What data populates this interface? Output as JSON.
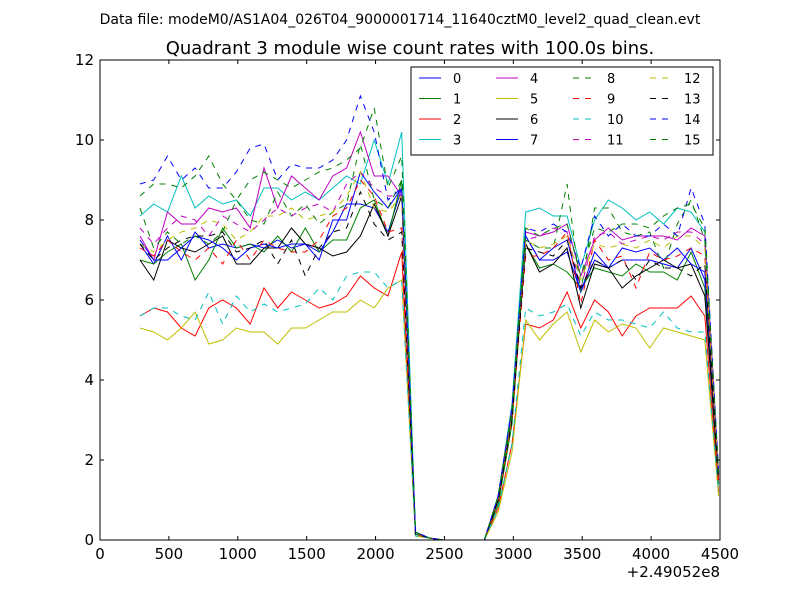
{
  "chart_data": {
    "type": "line",
    "title": "Quadrant 3 module wise count rates with 100.0s bins.",
    "suptitle": "Data file: modeM0/AS1A04_026T04_9000001714_11640cztM0_level2_quad_clean.evt",
    "x_offset_label": "+2.49052e8",
    "xlabel": "",
    "ylabel": "",
    "xlim": [
      0,
      4500
    ],
    "ylim": [
      0,
      12
    ],
    "xticks": [
      0,
      500,
      1000,
      1500,
      2000,
      2500,
      3000,
      3500,
      4000,
      4500
    ],
    "yticks": [
      0,
      2,
      4,
      6,
      8,
      10,
      12
    ],
    "grid": false,
    "legend_position": "top-right",
    "legend_columns": 4,
    "x": [
      290,
      390,
      490,
      590,
      690,
      790,
      890,
      990,
      1090,
      1190,
      1290,
      1390,
      1490,
      1590,
      1690,
      1790,
      1890,
      1990,
      2090,
      2190,
      2290,
      2390,
      2490,
      2590,
      2690,
      2790,
      2890,
      2990,
      3090,
      3190,
      3290,
      3390,
      3490,
      3590,
      3690,
      3790,
      3890,
      3990,
      4090,
      4190,
      4290,
      4390,
      4490
    ],
    "series": [
      {
        "name": "0",
        "color": "#0000ff",
        "dash": "solid",
        "values": [
          7.4,
          6.9,
          7.6,
          7.0,
          7.7,
          7.3,
          7.4,
          7.3,
          7.4,
          7.3,
          7.5,
          7.3,
          7.4,
          7.2,
          7.7,
          8.4,
          8.4,
          8.3,
          7.7,
          8.8,
          0.2,
          0.05,
          0.0,
          0.0,
          0.0,
          0.0,
          1.0,
          3.2,
          7.6,
          7.0,
          7.0,
          7.2,
          6.2,
          7.0,
          6.8,
          7.0,
          7.0,
          7.0,
          6.9,
          6.8,
          7.3,
          6.5,
          1.5
        ]
      },
      {
        "name": "1",
        "color": "#008000",
        "dash": "solid",
        "values": [
          7.0,
          6.9,
          7.2,
          7.4,
          6.5,
          7.0,
          7.8,
          7.3,
          7.4,
          7.2,
          7.6,
          7.2,
          7.8,
          7.2,
          7.5,
          7.5,
          8.3,
          8.5,
          7.6,
          9.0,
          0.1,
          0.05,
          0.0,
          0.0,
          0.0,
          0.0,
          0.9,
          2.9,
          7.4,
          6.8,
          6.9,
          6.7,
          6.3,
          6.8,
          6.7,
          6.6,
          6.9,
          6.7,
          6.7,
          6.5,
          7.2,
          6.3,
          1.4
        ]
      },
      {
        "name": "2",
        "color": "#ff0000",
        "dash": "solid",
        "values": [
          5.6,
          5.8,
          5.7,
          5.3,
          5.1,
          5.8,
          6.0,
          5.8,
          5.4,
          6.3,
          5.8,
          6.2,
          6.0,
          5.8,
          5.9,
          6.1,
          6.6,
          6.3,
          6.1,
          7.2,
          0.1,
          0.05,
          0.0,
          0.0,
          0.0,
          0.0,
          0.8,
          2.4,
          5.4,
          5.3,
          5.5,
          6.2,
          5.3,
          6.0,
          5.7,
          5.1,
          5.6,
          5.8,
          5.8,
          5.8,
          6.1,
          5.6,
          1.2
        ]
      },
      {
        "name": "3",
        "color": "#00bfbf",
        "dash": "solid",
        "values": [
          8.1,
          8.4,
          8.2,
          9.1,
          8.3,
          8.6,
          8.4,
          8.5,
          8.1,
          8.8,
          8.8,
          8.5,
          8.7,
          8.5,
          8.8,
          9.1,
          8.9,
          10.0,
          8.9,
          10.2,
          0.15,
          0.05,
          0.0,
          0.0,
          0.0,
          0.0,
          1.1,
          3.4,
          8.2,
          8.3,
          8.1,
          8.1,
          6.8,
          8.0,
          8.5,
          8.3,
          8.0,
          8.2,
          7.9,
          8.3,
          8.2,
          7.7,
          1.7
        ]
      },
      {
        "name": "4",
        "color": "#bf00bf",
        "dash": "solid",
        "values": [
          7.6,
          7.0,
          8.2,
          7.9,
          7.9,
          8.3,
          8.2,
          8.3,
          7.8,
          9.3,
          8.3,
          9.1,
          8.8,
          8.5,
          9.1,
          9.3,
          10.2,
          9.1,
          9.1,
          8.6,
          0.15,
          0.05,
          0.0,
          0.0,
          0.0,
          0.0,
          1.1,
          3.3,
          7.7,
          7.6,
          7.7,
          7.9,
          6.6,
          7.5,
          7.8,
          7.5,
          7.6,
          7.6,
          7.6,
          7.5,
          7.8,
          7.6,
          1.7
        ]
      },
      {
        "name": "5",
        "color": "#bfbf00",
        "dash": "solid",
        "values": [
          5.3,
          5.2,
          5.0,
          5.3,
          5.7,
          4.9,
          5.0,
          5.3,
          5.2,
          5.2,
          4.9,
          5.3,
          5.3,
          5.5,
          5.7,
          5.7,
          6.0,
          5.8,
          6.3,
          6.5,
          0.1,
          0.05,
          0.0,
          0.0,
          0.0,
          0.0,
          0.7,
          2.2,
          5.5,
          5.0,
          5.4,
          5.7,
          4.7,
          5.5,
          5.2,
          5.4,
          5.3,
          4.8,
          5.3,
          5.2,
          5.1,
          5.0,
          1.1
        ]
      },
      {
        "name": "6",
        "color": "#000000",
        "dash": "solid",
        "values": [
          7.0,
          6.5,
          7.5,
          7.3,
          7.2,
          7.4,
          7.6,
          6.9,
          6.9,
          7.3,
          7.3,
          7.8,
          7.4,
          7.3,
          7.1,
          7.2,
          7.6,
          8.4,
          7.6,
          8.6,
          0.15,
          0.05,
          0.0,
          0.0,
          0.0,
          0.0,
          1.0,
          3.1,
          7.4,
          6.7,
          6.9,
          7.3,
          5.8,
          6.9,
          6.8,
          6.3,
          6.6,
          6.8,
          7.0,
          6.8,
          6.9,
          6.1,
          1.5
        ]
      },
      {
        "name": "7",
        "color": "#0000ff",
        "dash": "solid",
        "values": [
          7.5,
          7.0,
          7.0,
          7.3,
          7.6,
          7.5,
          7.3,
          7.0,
          7.3,
          7.4,
          7.3,
          7.4,
          7.4,
          7.0,
          8.0,
          8.0,
          9.2,
          8.7,
          8.3,
          8.8,
          0.15,
          0.05,
          0.0,
          0.0,
          0.0,
          0.0,
          1.1,
          3.2,
          7.6,
          7.0,
          7.3,
          7.5,
          6.2,
          7.2,
          6.8,
          7.3,
          7.2,
          7.3,
          7.0,
          7.3,
          6.9,
          6.7,
          1.6
        ]
      },
      {
        "name": "8",
        "color": "#008000",
        "dash": "dashed",
        "values": [
          8.3,
          7.3,
          7.7,
          7.4,
          7.6,
          7.4,
          7.7,
          8.5,
          8.0,
          7.9,
          8.7,
          8.1,
          8.4,
          7.9,
          8.2,
          8.4,
          9.9,
          8.5,
          8.3,
          9.0,
          0.15,
          0.05,
          0.0,
          0.0,
          0.0,
          0.0,
          1.1,
          3.1,
          7.5,
          7.3,
          7.3,
          8.9,
          6.2,
          8.3,
          8.3,
          7.7,
          7.6,
          7.7,
          6.8,
          7.9,
          8.5,
          7.5,
          1.6
        ]
      },
      {
        "name": "9",
        "color": "#ff0000",
        "dash": "dashed",
        "values": [
          7.3,
          7.1,
          7.5,
          7.2,
          7.0,
          7.3,
          6.9,
          7.5,
          7.0,
          7.5,
          7.3,
          7.2,
          7.2,
          7.5,
          8.1,
          8.3,
          9.0,
          8.6,
          7.7,
          7.8,
          0.15,
          0.05,
          0.0,
          0.0,
          0.0,
          0.0,
          1.0,
          3.0,
          7.1,
          7.1,
          7.3,
          7.7,
          5.9,
          7.5,
          7.0,
          7.1,
          6.3,
          7.2,
          7.0,
          7.1,
          7.3,
          7.1,
          1.5
        ]
      },
      {
        "name": "10",
        "color": "#00bfbf",
        "dash": "dashed",
        "values": [
          5.6,
          5.8,
          5.8,
          5.6,
          5.5,
          6.2,
          5.4,
          6.1,
          5.7,
          5.9,
          5.7,
          5.8,
          5.9,
          6.3,
          6.0,
          6.6,
          6.7,
          6.7,
          6.3,
          6.5,
          0.1,
          0.05,
          0.0,
          0.0,
          0.0,
          0.0,
          0.8,
          2.4,
          5.8,
          5.6,
          5.7,
          5.9,
          5.1,
          5.7,
          5.5,
          5.5,
          5.4,
          5.3,
          5.7,
          5.3,
          5.2,
          5.2,
          1.2
        ]
      },
      {
        "name": "11",
        "color": "#bf00bf",
        "dash": "dashed",
        "values": [
          7.8,
          7.4,
          7.8,
          8.1,
          8.0,
          7.6,
          8.1,
          7.9,
          7.7,
          8.0,
          8.3,
          8.1,
          8.3,
          8.4,
          8.2,
          8.9,
          9.2,
          8.8,
          8.6,
          8.6,
          0.15,
          0.05,
          0.0,
          0.0,
          0.0,
          0.0,
          1.0,
          3.2,
          7.5,
          7.6,
          7.8,
          7.7,
          6.3,
          7.6,
          7.7,
          7.4,
          7.5,
          7.6,
          7.5,
          7.7,
          7.7,
          7.4,
          1.6
        ]
      },
      {
        "name": "12",
        "color": "#bfbf00",
        "dash": "dashed",
        "values": [
          7.4,
          7.2,
          7.5,
          7.7,
          7.8,
          8.0,
          7.9,
          7.5,
          7.7,
          8.1,
          8.1,
          8.3,
          8.0,
          8.1,
          8.2,
          8.6,
          9.2,
          8.3,
          8.2,
          8.6,
          0.15,
          0.05,
          0.0,
          0.0,
          0.0,
          0.0,
          1.0,
          3.1,
          7.5,
          7.3,
          7.4,
          7.6,
          6.5,
          7.4,
          7.3,
          7.4,
          7.3,
          7.5,
          7.3,
          7.6,
          7.6,
          7.3,
          1.6
        ]
      },
      {
        "name": "13",
        "color": "#000000",
        "dash": "dashed",
        "values": [
          7.4,
          7.0,
          7.3,
          7.5,
          7.6,
          7.6,
          7.7,
          7.2,
          7.3,
          7.5,
          6.9,
          7.5,
          6.6,
          7.3,
          7.7,
          7.8,
          8.7,
          7.9,
          7.5,
          7.7,
          0.15,
          0.05,
          0.0,
          0.0,
          0.0,
          0.0,
          1.0,
          3.0,
          7.3,
          7.2,
          7.1,
          7.5,
          6.3,
          7.0,
          6.8,
          7.0,
          6.5,
          7.0,
          6.8,
          6.8,
          6.6,
          6.9,
          1.5
        ]
      },
      {
        "name": "14",
        "color": "#0000ff",
        "dash": "dashed",
        "values": [
          8.9,
          9.0,
          9.6,
          9.0,
          9.3,
          8.8,
          8.8,
          9.2,
          9.8,
          9.9,
          9.0,
          9.4,
          9.3,
          9.3,
          9.5,
          10.0,
          11.1,
          10.2,
          8.5,
          8.8,
          0.2,
          0.05,
          0.0,
          0.0,
          0.0,
          0.0,
          1.1,
          3.3,
          7.8,
          7.7,
          7.9,
          7.7,
          6.8,
          8.1,
          7.6,
          7.9,
          7.6,
          7.6,
          7.9,
          7.6,
          8.8,
          7.9,
          1.7
        ]
      },
      {
        "name": "15",
        "color": "#008000",
        "dash": "dashed",
        "values": [
          8.6,
          8.9,
          8.9,
          8.8,
          9.1,
          9.6,
          8.9,
          8.5,
          9.0,
          9.2,
          9.0,
          8.8,
          9.0,
          9.2,
          9.3,
          9.5,
          9.8,
          10.8,
          8.8,
          9.6,
          0.2,
          0.05,
          0.0,
          0.0,
          0.0,
          0.0,
          1.1,
          3.3,
          7.8,
          7.6,
          7.8,
          7.9,
          6.6,
          7.8,
          7.7,
          7.9,
          7.9,
          7.8,
          8.1,
          8.3,
          8.4,
          7.8,
          1.7
        ]
      }
    ]
  }
}
